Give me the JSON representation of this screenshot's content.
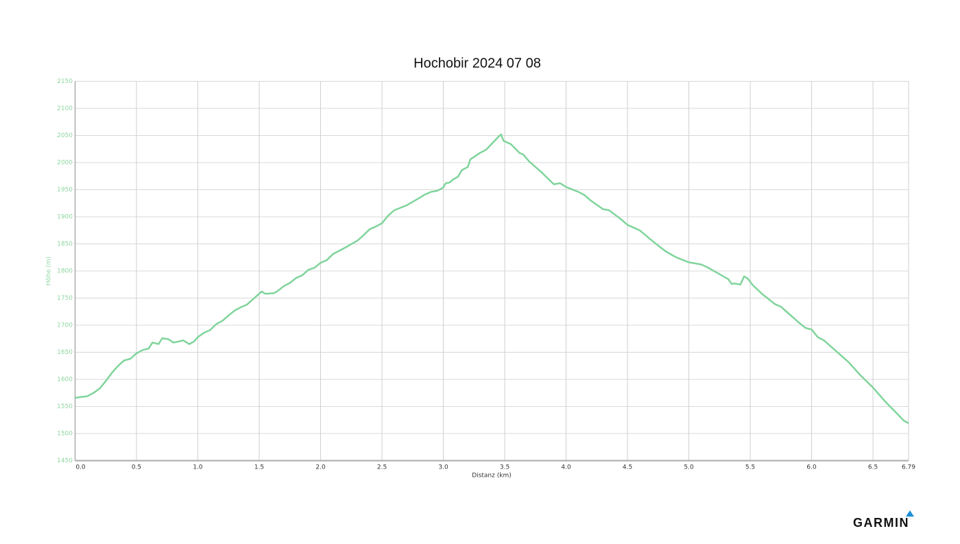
{
  "chart_data": {
    "type": "line",
    "title": "Hochobir 2024 07 08",
    "x_label": "Distanz (km)",
    "y_label": "Höhe (m)",
    "color": "#7fd49b",
    "grid": true,
    "xlim": [
      0,
      6.79
    ],
    "xticks": [
      {
        "value": 0,
        "label": "0.0"
      },
      0.5,
      {
        "value": 1,
        "label": "1.0"
      },
      1.5,
      {
        "value": 2,
        "label": "2.0"
      },
      2.5,
      {
        "value": 3,
        "label": "3.0"
      },
      3.5,
      {
        "value": 4,
        "label": "4.0"
      },
      4.5,
      {
        "value": 5,
        "label": "5.0"
      },
      5.5,
      {
        "value": 6,
        "label": "6.0"
      },
      6.5,
      6.79
    ],
    "ylim": [
      1450,
      2150
    ],
    "yticks": [
      1450,
      1500,
      1550,
      1600,
      1650,
      1700,
      1750,
      1800,
      1850,
      1900,
      1950,
      2000,
      2050,
      2100,
      2150
    ],
    "x": [
      0.0,
      0.1,
      0.15,
      0.2,
      0.25,
      0.3,
      0.35,
      0.4,
      0.45,
      0.5,
      0.55,
      0.6,
      0.63,
      0.68,
      0.71,
      0.76,
      0.8,
      0.85,
      0.88,
      0.93,
      0.97,
      1.0,
      1.05,
      1.1,
      1.15,
      1.2,
      1.25,
      1.3,
      1.35,
      1.4,
      1.45,
      1.5,
      1.52,
      1.55,
      1.62,
      1.65,
      1.7,
      1.75,
      1.8,
      1.85,
      1.9,
      1.95,
      2.0,
      2.05,
      2.1,
      2.2,
      2.3,
      2.35,
      2.4,
      2.45,
      2.5,
      2.55,
      2.6,
      2.7,
      2.8,
      2.85,
      2.9,
      2.95,
      3.0,
      3.02,
      3.05,
      3.08,
      3.12,
      3.15,
      3.2,
      3.22,
      3.3,
      3.35,
      3.4,
      3.45,
      3.47,
      3.49,
      3.55,
      3.62,
      3.65,
      3.7,
      3.8,
      3.9,
      3.95,
      4.0,
      4.1,
      4.15,
      4.2,
      4.3,
      4.35,
      4.45,
      4.5,
      4.6,
      4.7,
      4.8,
      4.85,
      4.9,
      5.0,
      5.05,
      5.1,
      5.15,
      5.25,
      5.32,
      5.35,
      5.37,
      5.42,
      5.45,
      5.48,
      5.52,
      5.6,
      5.7,
      5.75,
      5.8,
      5.9,
      5.95,
      6.0,
      6.05,
      6.1,
      6.2,
      6.3,
      6.4,
      6.5,
      6.6,
      6.7,
      6.75,
      6.79
    ],
    "values": [
      1566,
      1569,
      1575,
      1583,
      1597,
      1612,
      1625,
      1635,
      1638,
      1648,
      1654,
      1657,
      1668,
      1665,
      1676,
      1674,
      1668,
      1670,
      1672,
      1665,
      1670,
      1678,
      1686,
      1691,
      1702,
      1708,
      1718,
      1727,
      1733,
      1738,
      1748,
      1758,
      1762,
      1758,
      1759,
      1763,
      1772,
      1778,
      1787,
      1792,
      1802,
      1806,
      1815,
      1820,
      1831,
      1843,
      1856,
      1866,
      1877,
      1882,
      1888,
      1902,
      1912,
      1921,
      1934,
      1941,
      1946,
      1948,
      1954,
      1962,
      1963,
      1969,
      1974,
      1986,
      1992,
      2006,
      2018,
      2024,
      2036,
      2048,
      2052,
      2040,
      2034,
      2018,
      2015,
      2002,
      1982,
      1960,
      1962,
      1955,
      1946,
      1940,
      1930,
      1914,
      1912,
      1895,
      1885,
      1875,
      1856,
      1838,
      1831,
      1825,
      1816,
      1814,
      1812,
      1807,
      1794,
      1785,
      1776,
      1777,
      1775,
      1790,
      1786,
      1774,
      1757,
      1739,
      1734,
      1724,
      1704,
      1695,
      1692,
      1678,
      1672,
      1652,
      1632,
      1607,
      1585,
      1559,
      1536,
      1524,
      1519
    ]
  },
  "logo": "GARMIN"
}
